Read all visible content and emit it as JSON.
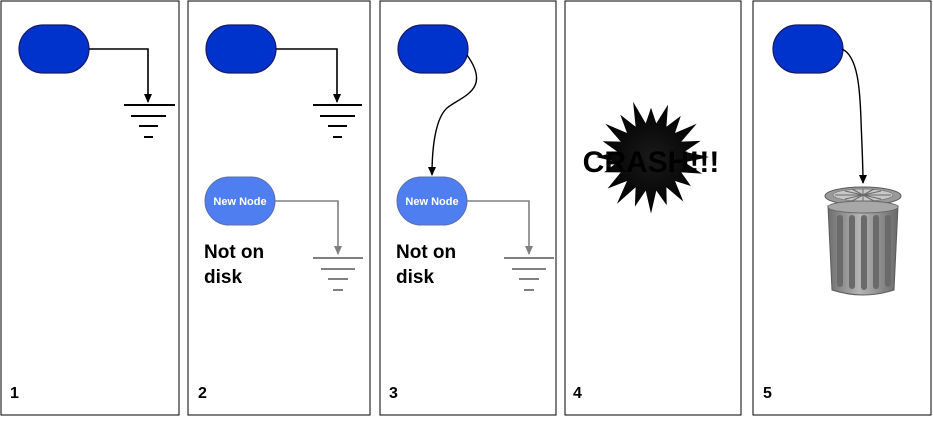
{
  "panels": [
    {
      "number": "1"
    },
    {
      "number": "2",
      "new_node_label": "New Node",
      "note_line1": "Not on",
      "note_line2": "disk"
    },
    {
      "number": "3",
      "new_node_label": "New Node",
      "note_line1": "Not on",
      "note_line2": "disk"
    },
    {
      "number": "4",
      "crash_text": "CRASH!!!"
    },
    {
      "number": "5"
    }
  ],
  "colors": {
    "node_dark": "#0033cc",
    "node_new": "#4f7ef0",
    "ground_black": "#000000",
    "ground_gray": "#808080",
    "trash": "#8a8a8a"
  }
}
